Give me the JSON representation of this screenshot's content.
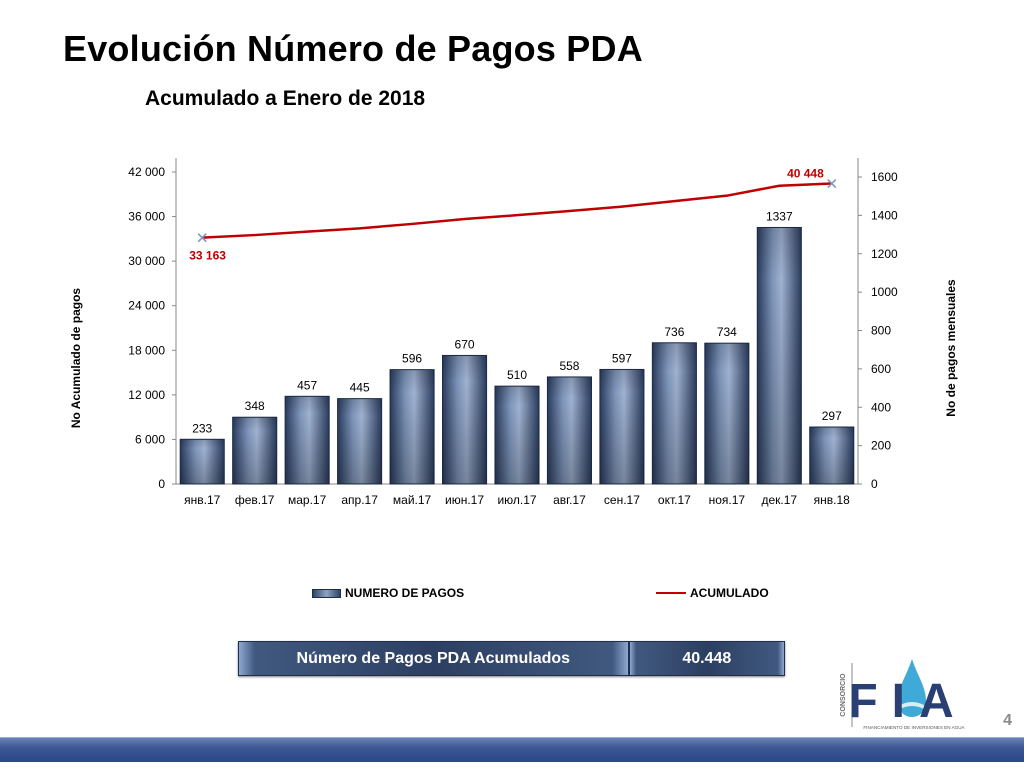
{
  "title": "Evolución Número de Pagos PDA",
  "subtitle": "Acumulado a Enero de 2018",
  "chart_data": {
    "type": "bar",
    "categories": [
      "янв.17",
      "фев.17",
      "мар.17",
      "апр.17",
      "май.17",
      "июн.17",
      "июл.17",
      "авг.17",
      "сен.17",
      "окт.17",
      "ноя.17",
      "дек.17",
      "янв.18"
    ],
    "series": [
      {
        "name": "NUMERO DE PAGOS",
        "type": "bar",
        "axis": "right",
        "values": [
          233,
          348,
          457,
          445,
          596,
          670,
          510,
          558,
          597,
          736,
          734,
          1337,
          297
        ]
      },
      {
        "name": "ACUMULADO",
        "type": "line",
        "axis": "left",
        "values": [
          33163,
          33511,
          33968,
          34413,
          35009,
          35679,
          36189,
          36747,
          37344,
          38080,
          38814,
          40151,
          40448
        ]
      }
    ],
    "line_labels": {
      "first": "33 163",
      "last": "40 448"
    },
    "y_left": {
      "label": "No Acumulado de pagos",
      "ticks": [
        "0",
        "6 000",
        "12 000",
        "18 000",
        "24 000",
        "30 000",
        "36 000",
        "42 000"
      ],
      "range": [
        0,
        42000
      ]
    },
    "y_right": {
      "label": "No de pagos mensuales",
      "ticks": [
        "0",
        "200",
        "400",
        "600",
        "800",
        "1000",
        "1200",
        "1400",
        "1600"
      ]
    },
    "legend": {
      "placement": "bottom"
    },
    "colors": {
      "bars": "#3b5075",
      "line": "#c00000",
      "line_labels": "#c00000"
    }
  },
  "summary": {
    "label": "Número de Pagos PDA Acumulados",
    "value": "40.448"
  },
  "logo": {
    "side_text": "CONSORCIO",
    "letters": "FIA",
    "tagline": "FINANCIAMIENTO DE INVERSIONES EN AGUA"
  },
  "page_number": "4"
}
